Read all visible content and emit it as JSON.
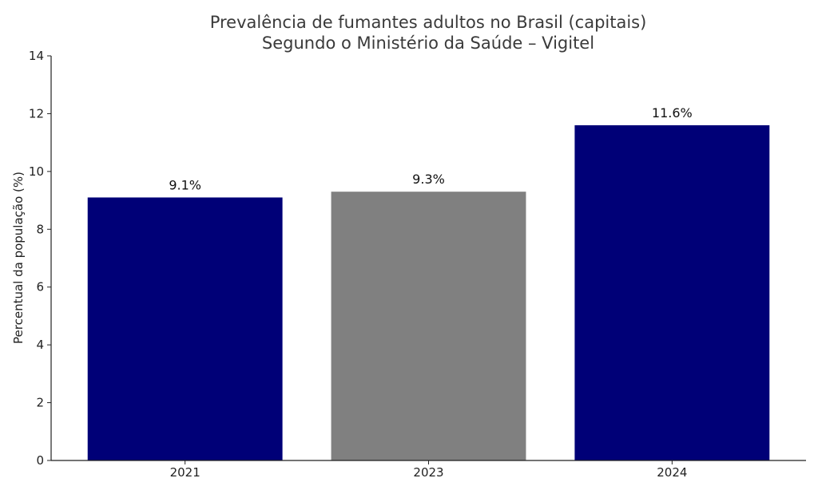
{
  "chart_data": {
    "type": "bar",
    "title": "Prevalência de fumantes adultos no Brasil (capitais)",
    "subtitle": "Segundo o Ministério da Saúde – Vigitel",
    "xlabel": "",
    "ylabel": "Percentual da população (%)",
    "categories": [
      "2021",
      "2023",
      "2024"
    ],
    "values": [
      9.1,
      9.3,
      11.6
    ],
    "data_labels": [
      "9.1%",
      "9.3%",
      "11.6%"
    ],
    "bar_colors": [
      "#000077",
      "#808080",
      "#000077"
    ],
    "ylim": [
      0,
      14
    ],
    "yticks": [
      0,
      2,
      4,
      6,
      8,
      10,
      12,
      14
    ],
    "grid": false,
    "legend": "none"
  }
}
